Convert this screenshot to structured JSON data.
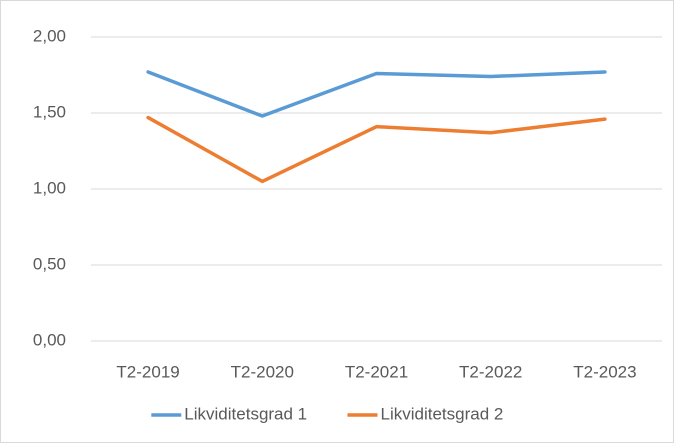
{
  "chart_data": {
    "type": "line",
    "categories": [
      "T2-2019",
      "T2-2020",
      "T2-2021",
      "T2-2022",
      "T2-2023"
    ],
    "series": [
      {
        "name": "Likviditetsgrad 1",
        "color": "#5b9bd5",
        "values": [
          1.77,
          1.48,
          1.76,
          1.74,
          1.77
        ]
      },
      {
        "name": "Likviditetsgrad 2",
        "color": "#ed7d31",
        "values": [
          1.47,
          1.05,
          1.41,
          1.37,
          1.46
        ]
      }
    ],
    "ylim": [
      0,
      2
    ],
    "yticks": [
      {
        "value": 0,
        "label": "0,00"
      },
      {
        "value": 0.5,
        "label": "0,50"
      },
      {
        "value": 1,
        "label": "1,00"
      },
      {
        "value": 1.5,
        "label": "1,50"
      },
      {
        "value": 2,
        "label": "2,00"
      }
    ],
    "grid": true,
    "legend": "bottom"
  }
}
